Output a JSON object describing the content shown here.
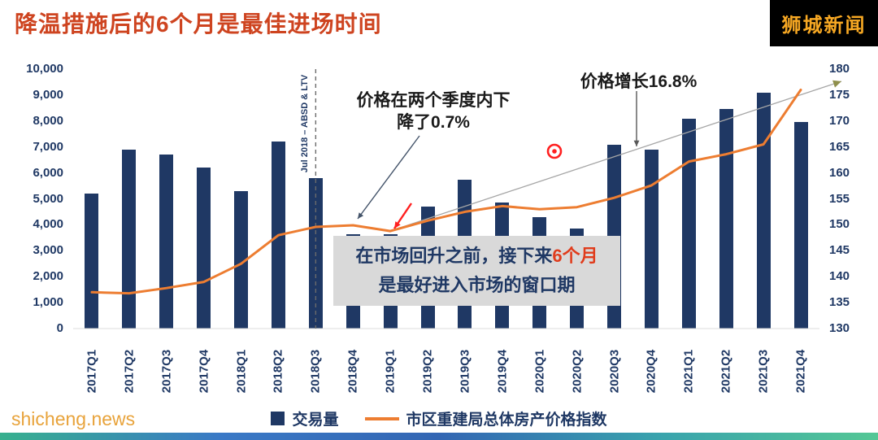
{
  "title": "降温措施后的6个月是最佳进场时间",
  "brand": "狮城新闻",
  "watermark": "shicheng.news",
  "legend": {
    "bars": "交易量",
    "line": "市区重建局总体房产价格指数"
  },
  "annotations": {
    "policy": "Jul 2018 – ABSD & LTV",
    "drop_line1": "价格在两个季度内下",
    "drop_line2": "降了0.7%",
    "growth": "价格增长16.8%",
    "callout_prefix": "在市场回升之前，接下来",
    "callout_highlight": "6个月",
    "callout_line2": "是最好进入市场的窗口期"
  },
  "colors": {
    "title": "#CE4420",
    "bar": "#1F3864",
    "line": "#ED7D31",
    "axis_text": "#1F3864",
    "brand_bg": "#000000",
    "brand_text": "#F7A823",
    "watermark": "#E8A33B",
    "callout_bg": "#D9D9D9",
    "callout_text": "#1F3864",
    "highlight": "#E03C1C",
    "pointer_red": "#FF2020",
    "trend_line": "#A6A6A6",
    "trend_head": "#8F8F4B",
    "dashed_line": "#6B6B6B",
    "leader_dark": "#44546A",
    "leader_gray": "#595959"
  },
  "chart_data": {
    "type": "bar",
    "combo": "bar+line",
    "title": "降温措施后的6个月是最佳进场时间",
    "xlabel": "",
    "ylabel_left": "交易量",
    "ylabel_right": "市区重建局总体房产价格指数",
    "grid": false,
    "legend_position": "bottom",
    "categories": [
      "2017Q1",
      "2017Q2",
      "2017Q3",
      "2017Q4",
      "2018Q1",
      "2018Q2",
      "2018Q3",
      "2018Q4",
      "2019Q1",
      "2019Q2",
      "2019Q3",
      "2019Q4",
      "2020Q1",
      "2020Q2",
      "2020Q3",
      "2020Q4",
      "2021Q1",
      "2021Q2",
      "2021Q3",
      "2021Q4"
    ],
    "series": [
      {
        "name": "交易量",
        "type": "bar",
        "axis": "left",
        "values": [
          5200,
          6900,
          6700,
          6200,
          5300,
          7200,
          5800,
          3650,
          3650,
          4700,
          5750,
          4850,
          4300,
          3850,
          7100,
          6900,
          8100,
          8450,
          9100,
          7950
        ]
      },
      {
        "name": "市区重建局总体房产价格指数",
        "type": "line",
        "axis": "right",
        "values": [
          137.0,
          136.8,
          137.8,
          139.0,
          142.5,
          148.0,
          149.6,
          149.9,
          148.8,
          150.8,
          152.5,
          153.6,
          153.0,
          153.4,
          155.2,
          157.6,
          162.2,
          163.6,
          165.5,
          176.0
        ]
      }
    ],
    "left_axis": {
      "min": 0,
      "max": 10000,
      "tick_labels": [
        "0",
        "1,000",
        "2,000",
        "3,000",
        "4,000",
        "5,000",
        "6,000",
        "7,000",
        "8,000",
        "9,000",
        "10,000"
      ]
    },
    "right_axis": {
      "min": 130,
      "max": 180,
      "tick_labels": [
        "130",
        "135",
        "140",
        "145",
        "150",
        "155",
        "160",
        "165",
        "170",
        "175",
        "180"
      ]
    },
    "notes": {
      "policy_event_category": "2018Q3",
      "policy_event_label": "Jul 2018 – ABSD & LTV",
      "price_drop_pct": -0.7,
      "price_growth_pct": 16.8,
      "trend_start_category": "2019Q1"
    }
  }
}
